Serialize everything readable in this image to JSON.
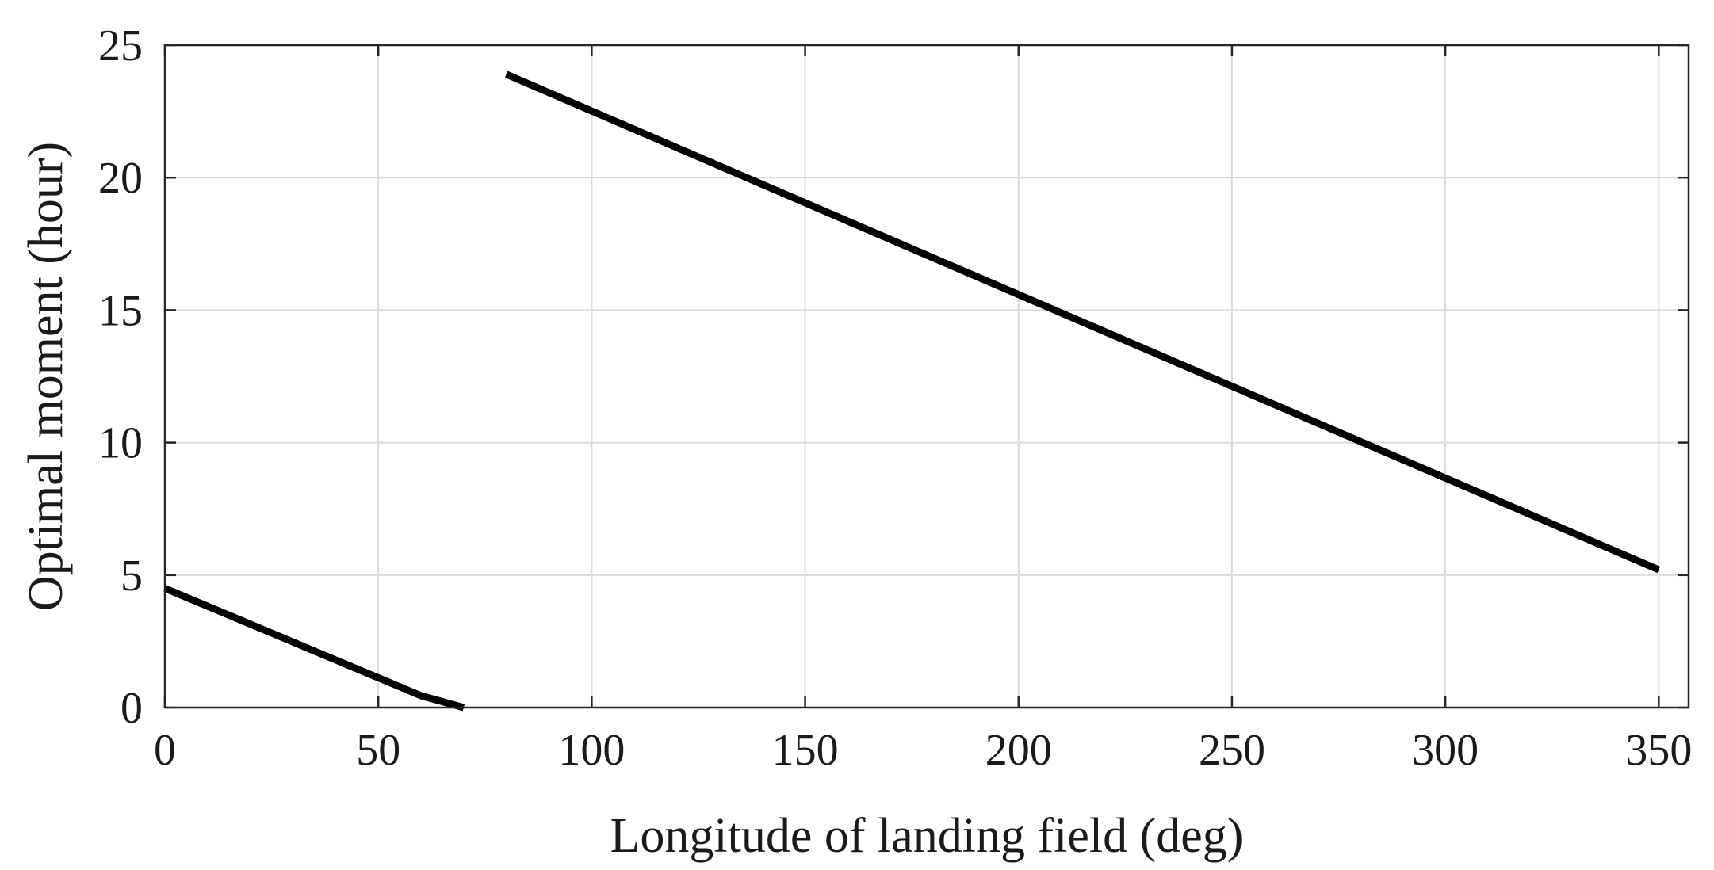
{
  "chart_data": {
    "type": "line",
    "title": "",
    "xlabel": "Longitude of landing field (deg)",
    "ylabel": "Optimal moment (hour)",
    "xlim": [
      0,
      357
    ],
    "ylim": [
      0,
      25
    ],
    "xticks": [
      0,
      50,
      100,
      150,
      200,
      250,
      300,
      350
    ],
    "yticks": [
      0,
      5,
      10,
      15,
      20,
      25
    ],
    "grid": true,
    "legend": "none",
    "line_color": "#000000",
    "series": [
      {
        "segments": [
          {
            "x": [
              0,
              60,
              70
            ],
            "y": [
              4.5,
              0.45,
              0.0
            ]
          },
          {
            "x": [
              80,
              350
            ],
            "y": [
              23.9,
              5.2
            ]
          }
        ]
      }
    ]
  }
}
